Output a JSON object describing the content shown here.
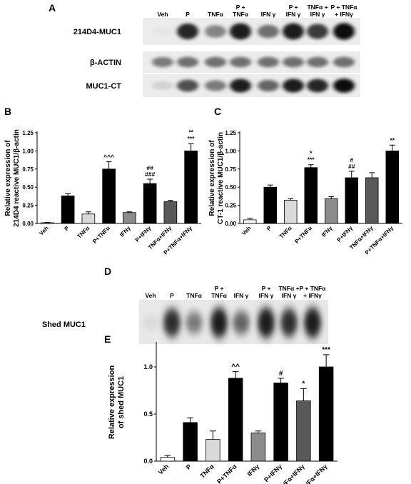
{
  "panels": {
    "a": {
      "letter": "A",
      "lanes": [
        "Veh",
        "P",
        "TNFα",
        "P +\nTNFα",
        "IFN γ",
        "P +\nIFN γ",
        "TNFα +\nIFN γ",
        "P + TNFα\n+ IFNγ"
      ],
      "blots": [
        {
          "label": "214D4-MUC1",
          "intensity": [
            0.0,
            0.9,
            0.45,
            0.95,
            0.55,
            0.95,
            0.8,
            1.0
          ]
        },
        {
          "label": "β-ACTIN",
          "intensity": [
            0.5,
            0.55,
            0.55,
            0.55,
            0.55,
            0.55,
            0.55,
            0.55
          ]
        },
        {
          "label": "MUC1-CT",
          "intensity": [
            0.1,
            0.7,
            0.5,
            0.95,
            0.6,
            0.95,
            0.9,
            1.0
          ]
        }
      ]
    },
    "d": {
      "letter": "D",
      "lanes": [
        "Veh",
        "P",
        "TNFα",
        "P +\nTNFα",
        "IFN γ",
        "P +\nIFN γ",
        "TNFα +\nIFN γ",
        "P + TNFα\n+ IFNγ"
      ],
      "blot_label": "Shed MUC1",
      "intensity": [
        0.05,
        0.85,
        0.5,
        0.95,
        0.6,
        0.95,
        0.85,
        0.95
      ]
    }
  },
  "chart_data": [
    {
      "id": "B",
      "letter": "B",
      "type": "bar",
      "ylabel": "Relative expression of\n214D4 reactive MUC1/β-actin",
      "ylim": [
        0,
        1.25
      ],
      "yticks": [
        "0.00",
        "0.25",
        "0.50",
        "0.75",
        "1.00",
        "1.25"
      ],
      "categories": [
        "Veh",
        "P",
        "TNFα",
        "P+TNFα",
        "IFNγ",
        "P+IFNγ",
        "TNFα+IFNγ",
        "P+TNFα+IFNγ"
      ],
      "values": [
        0.01,
        0.38,
        0.13,
        0.75,
        0.15,
        0.55,
        0.3,
        1.0
      ],
      "errors": [
        0.005,
        0.03,
        0.03,
        0.1,
        0.01,
        0.06,
        0.02,
        0.1
      ],
      "fills": [
        "#ffffff",
        "#000000",
        "#d9d9d9",
        "#000000",
        "#8c8c8c",
        "#000000",
        "#595959",
        "#000000"
      ],
      "annotations": [
        "",
        "",
        "",
        "^^^",
        "",
        "##\n###",
        "",
        "**\n***"
      ]
    },
    {
      "id": "C",
      "letter": "C",
      "type": "bar",
      "ylabel": "Relative expression of\nCT-1 reactive MUC1/β-actin",
      "ylim": [
        0,
        1.25
      ],
      "yticks": [
        "0.00",
        "0.25",
        "0.50",
        "0.75",
        "1.00",
        "1.25"
      ],
      "categories": [
        "Veh",
        "P",
        "TNFα",
        "P+TNFα",
        "IFNγ",
        "P+IFNγ",
        "TNFα+IFNγ",
        "P+TNFα+IFNγ"
      ],
      "values": [
        0.05,
        0.5,
        0.32,
        0.77,
        0.34,
        0.63,
        0.63,
        1.0
      ],
      "errors": [
        0.02,
        0.03,
        0.02,
        0.04,
        0.03,
        0.09,
        0.07,
        0.08
      ],
      "fills": [
        "#ffffff",
        "#000000",
        "#d9d9d9",
        "#000000",
        "#8c8c8c",
        "#000000",
        "#595959",
        "#000000"
      ],
      "annotations": [
        "",
        "",
        "",
        "*\n***",
        "",
        "#\n##",
        "",
        "**"
      ]
    },
    {
      "id": "E",
      "letter": "E",
      "type": "bar",
      "ylabel": "Relative expression\nof shed MUC1",
      "ylim": [
        0,
        1.25
      ],
      "yticks": [
        "0.0",
        "0.5",
        "1.0"
      ],
      "categories": [
        "Veh",
        "P",
        "TNFα",
        "P+TNFα",
        "IFNγ",
        "P+IFNγ",
        "TNFα+IFNγ",
        "P+TNFα+IFNγ"
      ],
      "values": [
        0.04,
        0.41,
        0.23,
        0.88,
        0.3,
        0.83,
        0.64,
        1.0
      ],
      "errors": [
        0.02,
        0.05,
        0.09,
        0.07,
        0.02,
        0.05,
        0.13,
        0.13
      ],
      "fills": [
        "#ffffff",
        "#000000",
        "#d9d9d9",
        "#000000",
        "#8c8c8c",
        "#000000",
        "#595959",
        "#000000"
      ],
      "annotations": [
        "",
        "",
        "",
        "^^",
        "",
        "#",
        "*",
        "***"
      ]
    }
  ]
}
